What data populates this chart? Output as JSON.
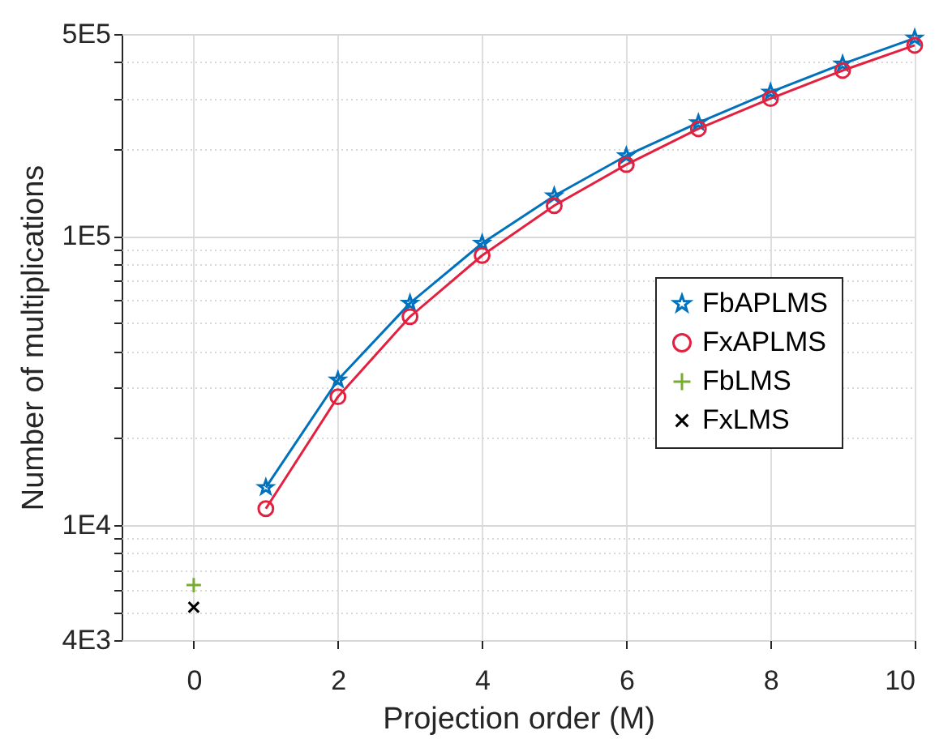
{
  "chart_data": {
    "type": "line",
    "xlabel": "Projection order (M)",
    "ylabel": "Number of multiplications",
    "xlim": [
      -1,
      10
    ],
    "xticks": [
      0,
      2,
      4,
      6,
      8,
      10
    ],
    "ylim": [
      4000,
      500000
    ],
    "log": true,
    "grid": true,
    "legend": "right",
    "yticks": [
      {
        "value": 4000,
        "label": "4E3"
      },
      {
        "value": 5000,
        "label": null
      },
      {
        "value": 6000,
        "label": null
      },
      {
        "value": 7000,
        "label": null
      },
      {
        "value": 8000,
        "label": null
      },
      {
        "value": 9000,
        "label": null
      },
      {
        "value": 10000,
        "label": "1E4"
      },
      {
        "value": 20000,
        "label": null
      },
      {
        "value": 30000,
        "label": null
      },
      {
        "value": 40000,
        "label": null
      },
      {
        "value": 50000,
        "label": null
      },
      {
        "value": 60000,
        "label": null
      },
      {
        "value": 70000,
        "label": null
      },
      {
        "value": 80000,
        "label": null
      },
      {
        "value": 90000,
        "label": null
      },
      {
        "value": 100000,
        "label": "1E5"
      },
      {
        "value": 200000,
        "label": null
      },
      {
        "value": 300000,
        "label": null
      },
      {
        "value": 400000,
        "label": null
      },
      {
        "value": 500000,
        "label": "5E5"
      }
    ],
    "series": [
      {
        "name": "FbAPLMS",
        "marker": "star",
        "color": "#0072bd",
        "x": [
          1,
          2,
          3,
          4,
          5,
          6,
          7,
          8,
          9,
          10
        ],
        "values": [
          13500,
          31800,
          58600,
          94400,
          137700,
          189600,
          246700,
          315000,
          394000,
          484000
        ]
      },
      {
        "name": "FxAPLMS",
        "marker": "circle",
        "color": "#e3203f",
        "x": [
          1,
          2,
          3,
          4,
          5,
          6,
          7,
          8,
          9,
          10
        ],
        "values": [
          11400,
          27800,
          52600,
          85700,
          127400,
          176700,
          235000,
          299000,
          374000,
          457000
        ]
      },
      {
        "name": "FbLMS",
        "type": "scatter",
        "marker": "plus",
        "color": "#77ac30",
        "x": [
          0
        ],
        "values": [
          6200
        ]
      },
      {
        "name": "FxLMS",
        "type": "scatter",
        "marker": "cross",
        "color": "#000000",
        "x": [
          0
        ],
        "values": [
          5200
        ]
      }
    ]
  }
}
